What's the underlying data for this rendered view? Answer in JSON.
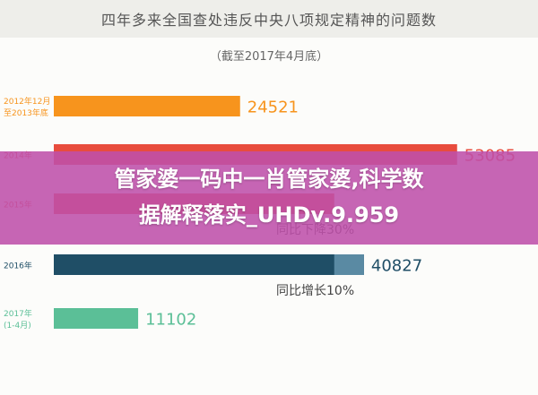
{
  "header": {
    "title": "四年多来全国查处违反中央八项规定精神的问题数",
    "subtitle": "（截至2017年4月底）"
  },
  "overlay": {
    "line1": "管家婆一码中一肖管家婆,科学数",
    "line2": "据解释落实_UHDv.9.959"
  },
  "colors": {
    "bar_2012": "#f7941d",
    "bar_2014": "#e84c3d",
    "bar_2016": "#1f4e66",
    "bar_2016_remainder": "#5a8aa3",
    "bar_2017": "#5bbf97",
    "overlay_band": "#be50aa"
  },
  "chart_data": {
    "type": "bar",
    "orientation": "horizontal",
    "title": "四年多来全国查处违反中央八项规定精神的问题数",
    "subtitle": "（截至2017年4月底）",
    "categories": [
      [
        "2012年12月",
        "至2013年底"
      ],
      [
        "2014年"
      ],
      [
        "2015年"
      ],
      [
        "2016年"
      ],
      [
        "2017年",
        "(1-4月)"
      ]
    ],
    "values": [
      24521,
      53085,
      36911,
      40827,
      11102
    ],
    "value_labels": [
      "24521",
      "53085",
      "",
      "40827",
      "11102"
    ],
    "annotations": [
      "",
      "",
      "同比下降30%",
      "同比增长10%",
      ""
    ],
    "xlim": [
      0,
      55000
    ]
  }
}
